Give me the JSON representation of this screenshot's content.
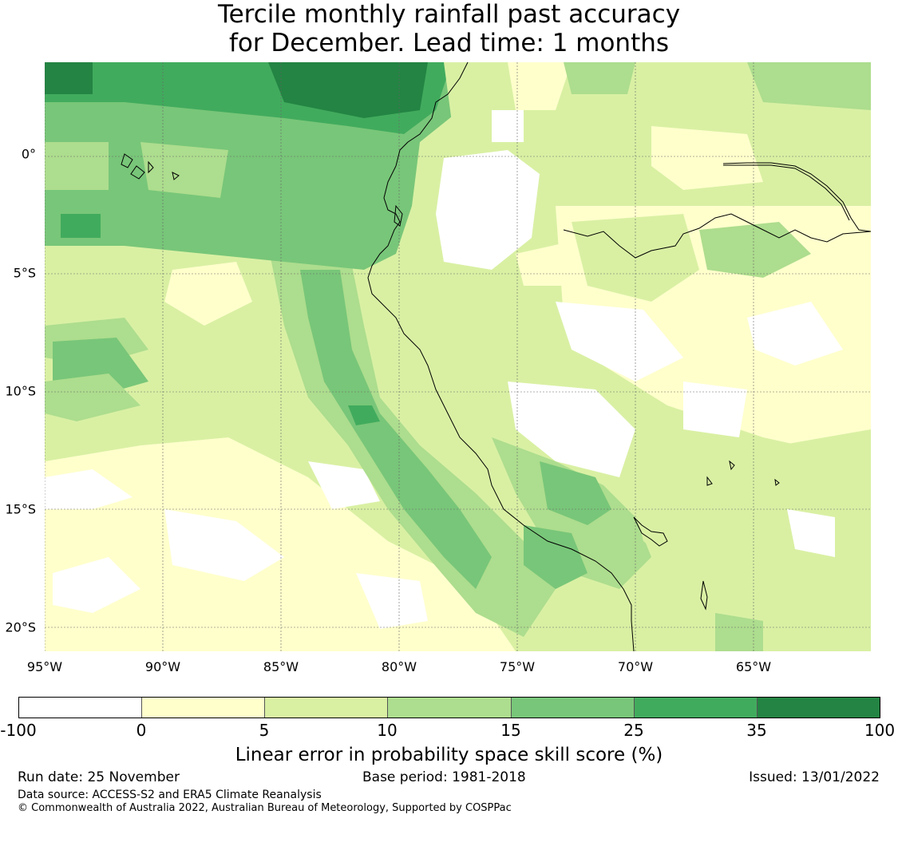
{
  "title_line1": "Tercile monthly rainfall past accuracy",
  "title_line2": "for December. Lead time: 1 months",
  "map": {
    "lat_labels": [
      "0°",
      "5°S",
      "10°S",
      "15°S",
      "20°S"
    ],
    "lon_labels": [
      "95°W",
      "90°W",
      "85°W",
      "80°W",
      "75°W",
      "70°W",
      "65°W"
    ],
    "gridlines": true,
    "extent": {
      "lon_min": -95,
      "lon_max": -60,
      "lat_min": -21,
      "lat_max": 4
    },
    "colors": [
      "#ffffff",
      "#ffffcc",
      "#d9f0a3",
      "#addd8e",
      "#78c679",
      "#41ab5d",
      "#238443"
    ]
  },
  "colorbar": {
    "ticks": [
      "-100",
      "0",
      "5",
      "10",
      "15",
      "25",
      "35",
      "100"
    ],
    "label": "Linear error in probability space skill score (%)"
  },
  "footer": {
    "run_date": "Run date: 25 November",
    "base_period": "Base period: 1981-2018",
    "issued": "Issued: 13/01/2022",
    "data_source": "Data source: ACCESS-S2 and ERA5 Climate Reanalysis",
    "copyright": "© Commonwealth of Australia 2022, Australian Bureau of Meteorology, Supported by COSPPac"
  }
}
